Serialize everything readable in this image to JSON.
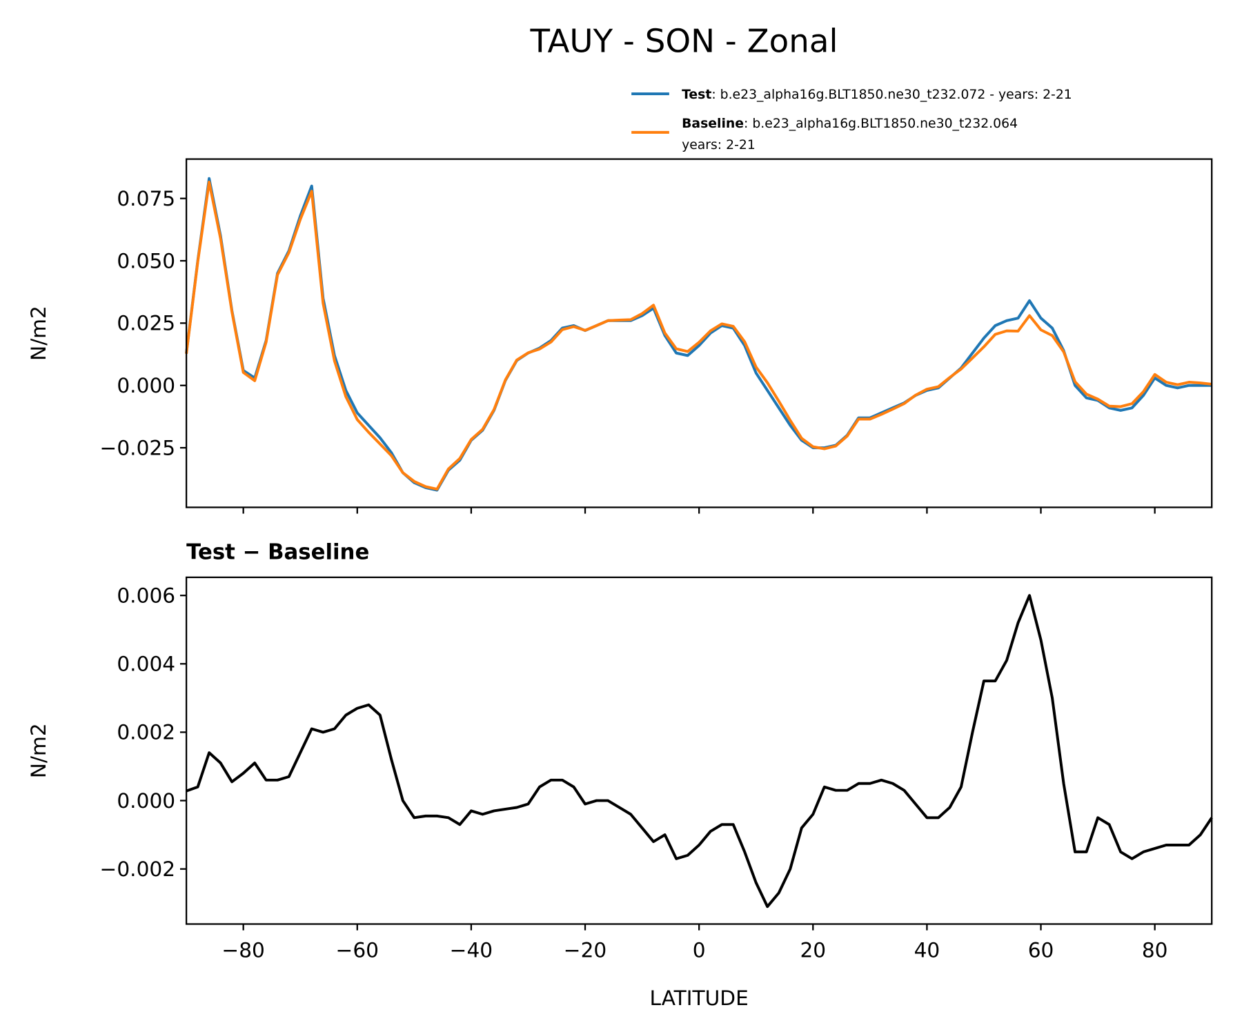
{
  "chart_data": [
    {
      "type": "line",
      "title": "TAUY - SON - Zonal",
      "ylabel": "N/m2",
      "x": [
        -90,
        -88,
        -86,
        -84,
        -82,
        -80,
        -78,
        -76,
        -74,
        -72,
        -70,
        -68,
        -66,
        -64,
        -62,
        -60,
        -58,
        -56,
        -54,
        -52,
        -50,
        -48,
        -46,
        -44,
        -42,
        -40,
        -38,
        -36,
        -34,
        -32,
        -30,
        -28,
        -26,
        -24,
        -22,
        -20,
        -18,
        -16,
        -14,
        -12,
        -10,
        -8,
        -6,
        -4,
        -2,
        0,
        2,
        4,
        6,
        8,
        10,
        12,
        14,
        16,
        18,
        20,
        22,
        24,
        26,
        28,
        30,
        32,
        34,
        36,
        38,
        40,
        42,
        44,
        46,
        48,
        50,
        52,
        54,
        56,
        58,
        60,
        62,
        64,
        66,
        68,
        70,
        72,
        74,
        76,
        78,
        80,
        82,
        84,
        86,
        88,
        90
      ],
      "series": [
        {
          "name": "Test",
          "label": [
            ": b.e23_alpha16g.BLT1850.ne30_t232.072 - years: 2-21"
          ],
          "color": "#1f77b4",
          "values": [
            0.013,
            0.05,
            0.083,
            0.06,
            0.03,
            0.006,
            0.003,
            0.018,
            0.045,
            0.054,
            0.068,
            0.08,
            0.035,
            0.012,
            -0.002,
            -0.011,
            -0.016,
            -0.021,
            -0.027,
            -0.035,
            -0.039,
            -0.041,
            -0.042,
            -0.034,
            -0.03,
            -0.022,
            -0.018,
            -0.01,
            0.002,
            0.01,
            0.013,
            0.015,
            0.018,
            0.023,
            0.024,
            0.022,
            0.024,
            0.026,
            0.026,
            0.026,
            0.028,
            0.031,
            0.02,
            0.013,
            0.012,
            0.016,
            0.021,
            0.024,
            0.023,
            0.016,
            0.005,
            -0.002,
            -0.009,
            -0.016,
            -0.022,
            -0.025,
            -0.025,
            -0.024,
            -0.02,
            -0.013,
            -0.013,
            -0.011,
            -0.009,
            -0.007,
            -0.004,
            -0.002,
            -0.001,
            0.003,
            0.007,
            0.013,
            0.019,
            0.024,
            0.026,
            0.027,
            0.034,
            0.027,
            0.023,
            0.014,
            0.0,
            -0.005,
            -0.006,
            -0.009,
            -0.01,
            -0.009,
            -0.004,
            0.003,
            0.0,
            -0.001,
            0.0,
            0.0,
            0.0
          ]
        },
        {
          "name": "Baseline",
          "label": [
            ": b.e23_alpha16g.BLT1850.ne30_t232.064",
            "years: 2-21"
          ],
          "color": "#ff7f0e",
          "values": [
            0.0127,
            0.0496,
            0.0816,
            0.0589,
            0.0295,
            0.0052,
            0.0019,
            0.0174,
            0.0444,
            0.0533,
            0.0666,
            0.0779,
            0.033,
            0.0099,
            -0.0045,
            -0.0137,
            -0.0188,
            -0.0235,
            -0.0282,
            -0.035,
            -0.0385,
            -0.0406,
            -0.0416,
            -0.0335,
            -0.0293,
            -0.0217,
            -0.0176,
            -0.0097,
            0.0022,
            0.0102,
            0.0131,
            0.0146,
            0.0174,
            0.0224,
            0.0236,
            0.0221,
            0.024,
            0.026,
            0.0262,
            0.0264,
            0.0288,
            0.0322,
            0.021,
            0.0147,
            0.0136,
            0.0173,
            0.0219,
            0.0247,
            0.0237,
            0.0175,
            0.0074,
            0.0011,
            -0.0063,
            -0.014,
            -0.0212,
            -0.0246,
            -0.0254,
            -0.0243,
            -0.0203,
            -0.0135,
            -0.0135,
            -0.0116,
            -0.0095,
            -0.0073,
            -0.0039,
            -0.0015,
            -0.0005,
            0.0032,
            0.0066,
            0.011,
            0.0155,
            0.0205,
            0.0219,
            0.0218,
            0.028,
            0.0223,
            0.02,
            0.0135,
            0.0015,
            -0.0035,
            -0.0055,
            -0.0083,
            -0.0085,
            -0.0073,
            -0.0025,
            0.0044,
            0.0013,
            0.0003,
            0.0013,
            0.001,
            0.0005
          ]
        }
      ],
      "xlim": [
        -90,
        90
      ],
      "xticks": [
        {
          "value": -80,
          "label": "−80"
        },
        {
          "value": -60,
          "label": "−60"
        },
        {
          "value": -40,
          "label": "−40"
        },
        {
          "value": -20,
          "label": "−20"
        },
        0,
        20,
        40,
        60,
        80
      ],
      "ylim": [
        -0.0489,
        0.0908
      ],
      "yticks": [
        {
          "value": -0.025,
          "label": "−0.025"
        },
        {
          "value": 0,
          "label": "0.000"
        },
        {
          "value": 0.025,
          "label": "0.025"
        },
        {
          "value": 0.05,
          "label": "0.050"
        },
        {
          "value": 0.075,
          "label": "0.075"
        }
      ],
      "legend": "upper right"
    },
    {
      "type": "line",
      "title": "Test − Baseline",
      "ylabel": "N/m2",
      "xlabel": "LATITUDE",
      "color": "#000000",
      "x": [
        -90,
        -88,
        -86,
        -84,
        -82,
        -80,
        -78,
        -76,
        -74,
        -72,
        -70,
        -68,
        -66,
        -64,
        -62,
        -60,
        -58,
        -56,
        -54,
        -52,
        -50,
        -48,
        -46,
        -44,
        -42,
        -40,
        -38,
        -36,
        -34,
        -32,
        -30,
        -28,
        -26,
        -24,
        -22,
        -20,
        -18,
        -16,
        -14,
        -12,
        -10,
        -8,
        -6,
        -4,
        -2,
        0,
        2,
        4,
        6,
        8,
        10,
        12,
        14,
        16,
        18,
        20,
        22,
        24,
        26,
        28,
        30,
        32,
        34,
        36,
        38,
        40,
        42,
        44,
        46,
        48,
        50,
        52,
        54,
        56,
        58,
        60,
        62,
        64,
        66,
        68,
        70,
        72,
        74,
        76,
        78,
        80,
        82,
        84,
        86,
        88,
        90
      ],
      "values": [
        0.00028,
        0.0004,
        0.0014,
        0.0011,
        0.00055,
        0.0008,
        0.0011,
        0.0006,
        0.0006,
        0.0007,
        0.0014,
        0.0021,
        0.002,
        0.0021,
        0.0025,
        0.0027,
        0.0028,
        0.0025,
        0.0012,
        0.0,
        -0.0005,
        -0.00045,
        -0.00045,
        -0.0005,
        -0.0007,
        -0.0003,
        -0.0004,
        -0.0003,
        -0.00025,
        -0.0002,
        -0.0001,
        0.0004,
        0.0006,
        0.0006,
        0.0004,
        -0.0001,
        0.0,
        0.0,
        -0.0002,
        -0.0004,
        -0.0008,
        -0.0012,
        -0.001,
        -0.0017,
        -0.0016,
        -0.0013,
        -0.0009,
        -0.0007,
        -0.0007,
        -0.0015,
        -0.0024,
        -0.0031,
        -0.0027,
        -0.002,
        -0.0008,
        -0.0004,
        0.0004,
        0.0003,
        0.0003,
        0.0005,
        0.0005,
        0.0006,
        0.0005,
        0.0003,
        -0.0001,
        -0.0005,
        -0.0005,
        -0.0002,
        0.0004,
        0.002,
        0.0035,
        0.0035,
        0.0041,
        0.0052,
        0.006,
        0.0047,
        0.003,
        0.0005,
        -0.0015,
        -0.0015,
        -0.0005,
        -0.0007,
        -0.0015,
        -0.0017,
        -0.0015,
        -0.0014,
        -0.0013,
        -0.0013,
        -0.0013,
        -0.001,
        -0.0005
      ],
      "xlim": [
        -90,
        90
      ],
      "xticks": [
        {
          "value": -80,
          "label": "−80"
        },
        {
          "value": -60,
          "label": "−60"
        },
        {
          "value": -40,
          "label": "−40"
        },
        {
          "value": -20,
          "label": "−20"
        },
        0,
        20,
        40,
        60,
        80
      ],
      "ylim": [
        -0.00361,
        0.00653
      ],
      "yticks": [
        {
          "value": -0.002,
          "label": "−0.002"
        },
        {
          "value": 0,
          "label": "0.000"
        },
        0.002,
        0.004,
        0.006
      ]
    }
  ]
}
